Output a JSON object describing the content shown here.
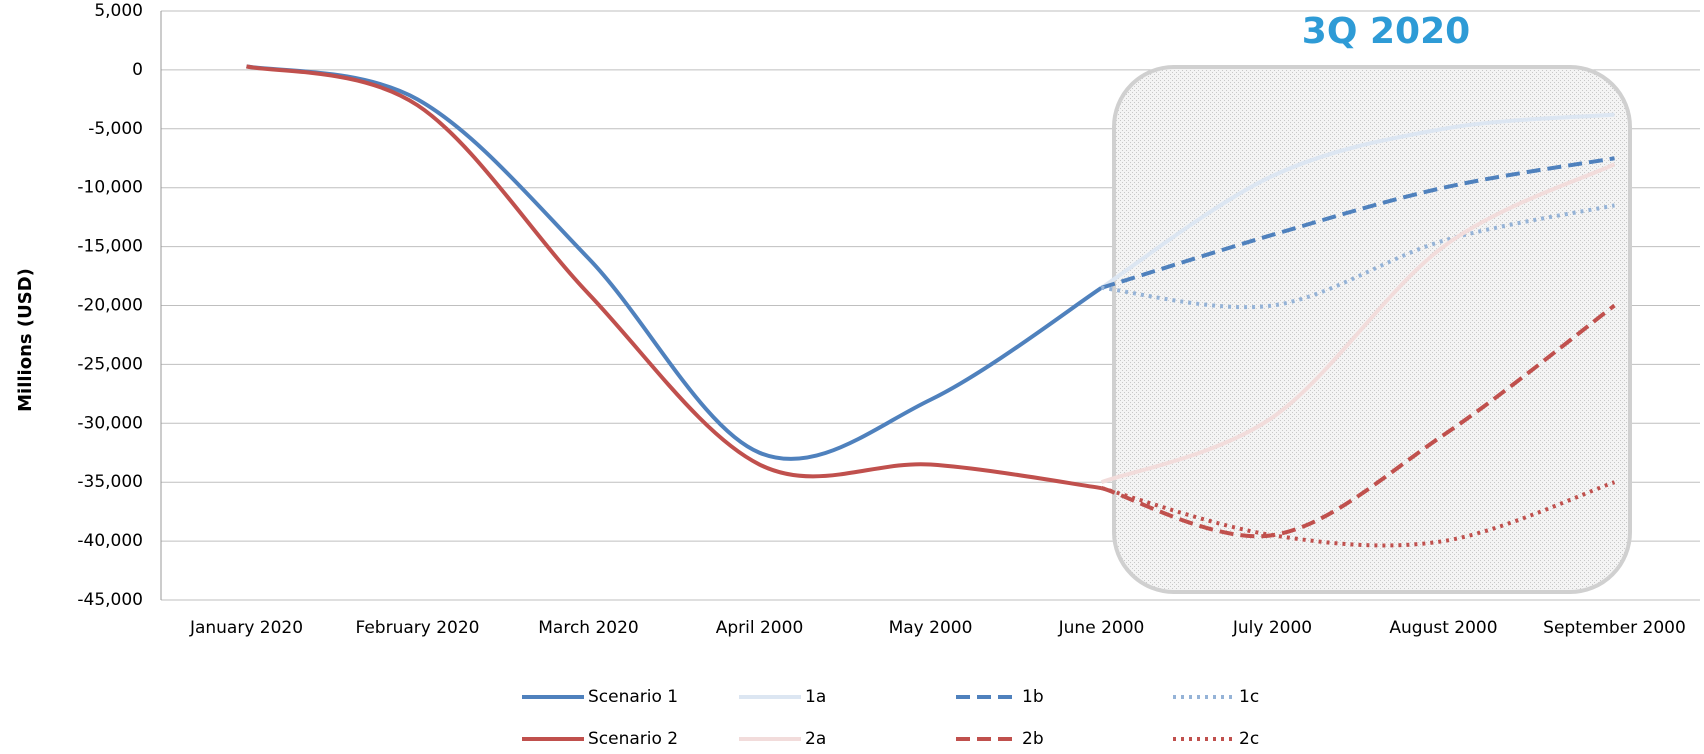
{
  "chart_data": {
    "type": "line",
    "y_label": "Millions (USD)",
    "annotation": "3Q 2020",
    "categories": [
      "January 2020",
      "February 2020",
      "March 2020",
      "April 2000",
      "May 2000",
      "June 2000",
      "July 2000",
      "August 2000",
      "September 2000"
    ],
    "series": [
      {
        "name": "Scenario 1",
        "color": "#4f81bd",
        "dash": "solid",
        "values": [
          300,
          -2500,
          -16000,
          -32500,
          -28000,
          -18500,
          null,
          null,
          null
        ]
      },
      {
        "name": "1a",
        "color": "#dce6f2",
        "dash": "solid",
        "values": [
          null,
          null,
          null,
          null,
          null,
          -18500,
          -9000,
          -5000,
          -3800
        ]
      },
      {
        "name": "1b",
        "color": "#4f81bd",
        "dash": "dashed",
        "values": [
          null,
          null,
          null,
          null,
          null,
          -18500,
          -14000,
          -10000,
          -7500
        ]
      },
      {
        "name": "1c",
        "color": "#95b3d7",
        "dash": "dotted",
        "values": [
          null,
          null,
          null,
          null,
          null,
          -18500,
          -20000,
          -14500,
          -11500
        ]
      },
      {
        "name": "Scenario 2",
        "color": "#c0504d",
        "dash": "solid",
        "values": [
          300,
          -3000,
          -19000,
          -33500,
          -33500,
          -35500,
          null,
          null,
          null
        ]
      },
      {
        "name": "2a",
        "color": "#f2dcdb",
        "dash": "solid",
        "values": [
          null,
          null,
          null,
          null,
          null,
          -35000,
          -29500,
          -15000,
          -8000
        ]
      },
      {
        "name": "2b",
        "color": "#c0504d",
        "dash": "dashed",
        "values": [
          null,
          null,
          null,
          null,
          null,
          -35500,
          -39500,
          -31000,
          -20000
        ]
      },
      {
        "name": "2c",
        "color": "#c0504d",
        "dash": "dotted",
        "values": [
          null,
          null,
          null,
          null,
          null,
          -35500,
          -39500,
          -40000,
          -35000
        ]
      }
    ],
    "ylim": [
      -45000,
      5000
    ],
    "yticks": [
      {
        "value": -45000,
        "label": "-45,000"
      },
      {
        "value": -40000,
        "label": "-40,000"
      },
      {
        "value": -35000,
        "label": "-35,000"
      },
      {
        "value": -30000,
        "label": "-30,000"
      },
      {
        "value": -25000,
        "label": "-25,000"
      },
      {
        "value": -20000,
        "label": "-20,000"
      },
      {
        "value": -15000,
        "label": "-15,000"
      },
      {
        "value": -10000,
        "label": "-10,000"
      },
      {
        "value": -5000,
        "label": "-5,000"
      },
      0,
      {
        "value": 5000,
        "label": "5,000"
      }
    ],
    "grid": true
  }
}
